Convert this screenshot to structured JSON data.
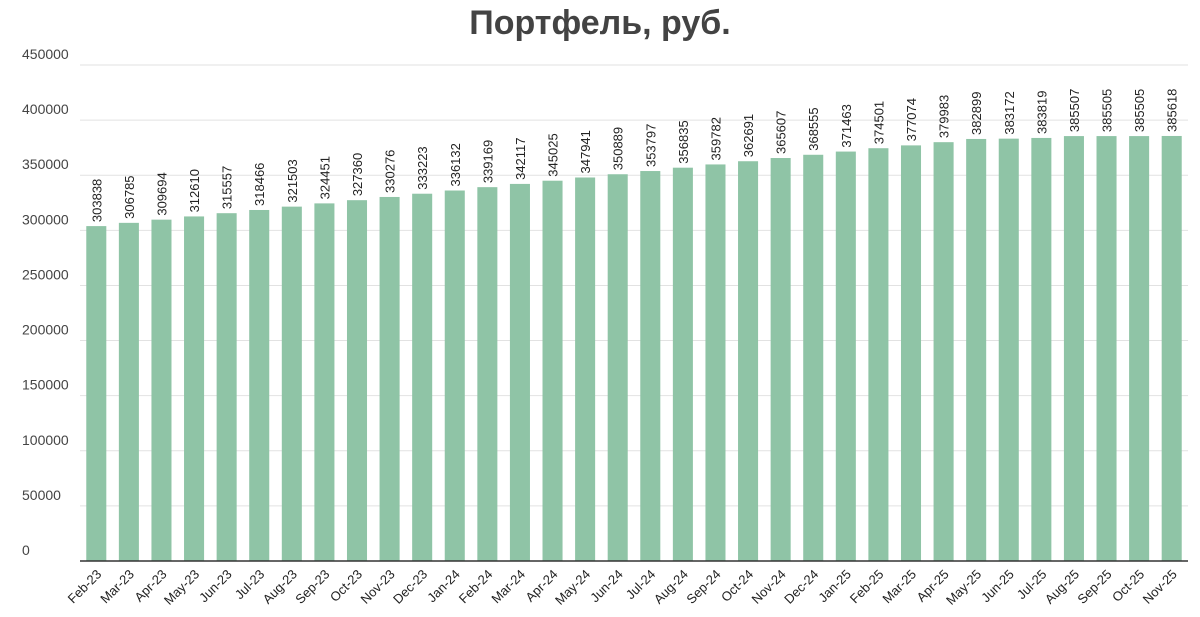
{
  "chart_data": {
    "type": "bar",
    "title": "Портфель, руб.",
    "xlabel": "",
    "ylabel": "",
    "ylim": [
      0,
      450000
    ],
    "yticks": [
      0,
      50000,
      100000,
      150000,
      200000,
      250000,
      300000,
      350000,
      400000,
      450000
    ],
    "grid": true,
    "legend": "none",
    "bar_color": "#8fc4a6",
    "categories": [
      "Feb-23",
      "Mar-23",
      "Apr-23",
      "May-23",
      "Jun-23",
      "Jul-23",
      "Aug-23",
      "Sep-23",
      "Oct-23",
      "Nov-23",
      "Dec-23",
      "Jan-24",
      "Feb-24",
      "Mar-24",
      "Apr-24",
      "May-24",
      "Jun-24",
      "Jul-24",
      "Aug-24",
      "Sep-24",
      "Oct-24",
      "Nov-24",
      "Dec-24",
      "Jan-25",
      "Feb-25",
      "Mar-25",
      "Apr-25",
      "May-25",
      "Jun-25",
      "Jul-25",
      "Aug-25",
      "Sep-25",
      "Oct-25",
      "Nov-25"
    ],
    "values": [
      303838,
      306785,
      309694,
      312610,
      315557,
      318466,
      321503,
      324451,
      327360,
      330276,
      333223,
      336132,
      339169,
      342117,
      345025,
      347941,
      350889,
      353797,
      356835,
      359782,
      362691,
      365607,
      368555,
      371463,
      374501,
      377074,
      379983,
      382899,
      383172,
      383819,
      385507,
      385505,
      385505,
      385618
    ]
  }
}
